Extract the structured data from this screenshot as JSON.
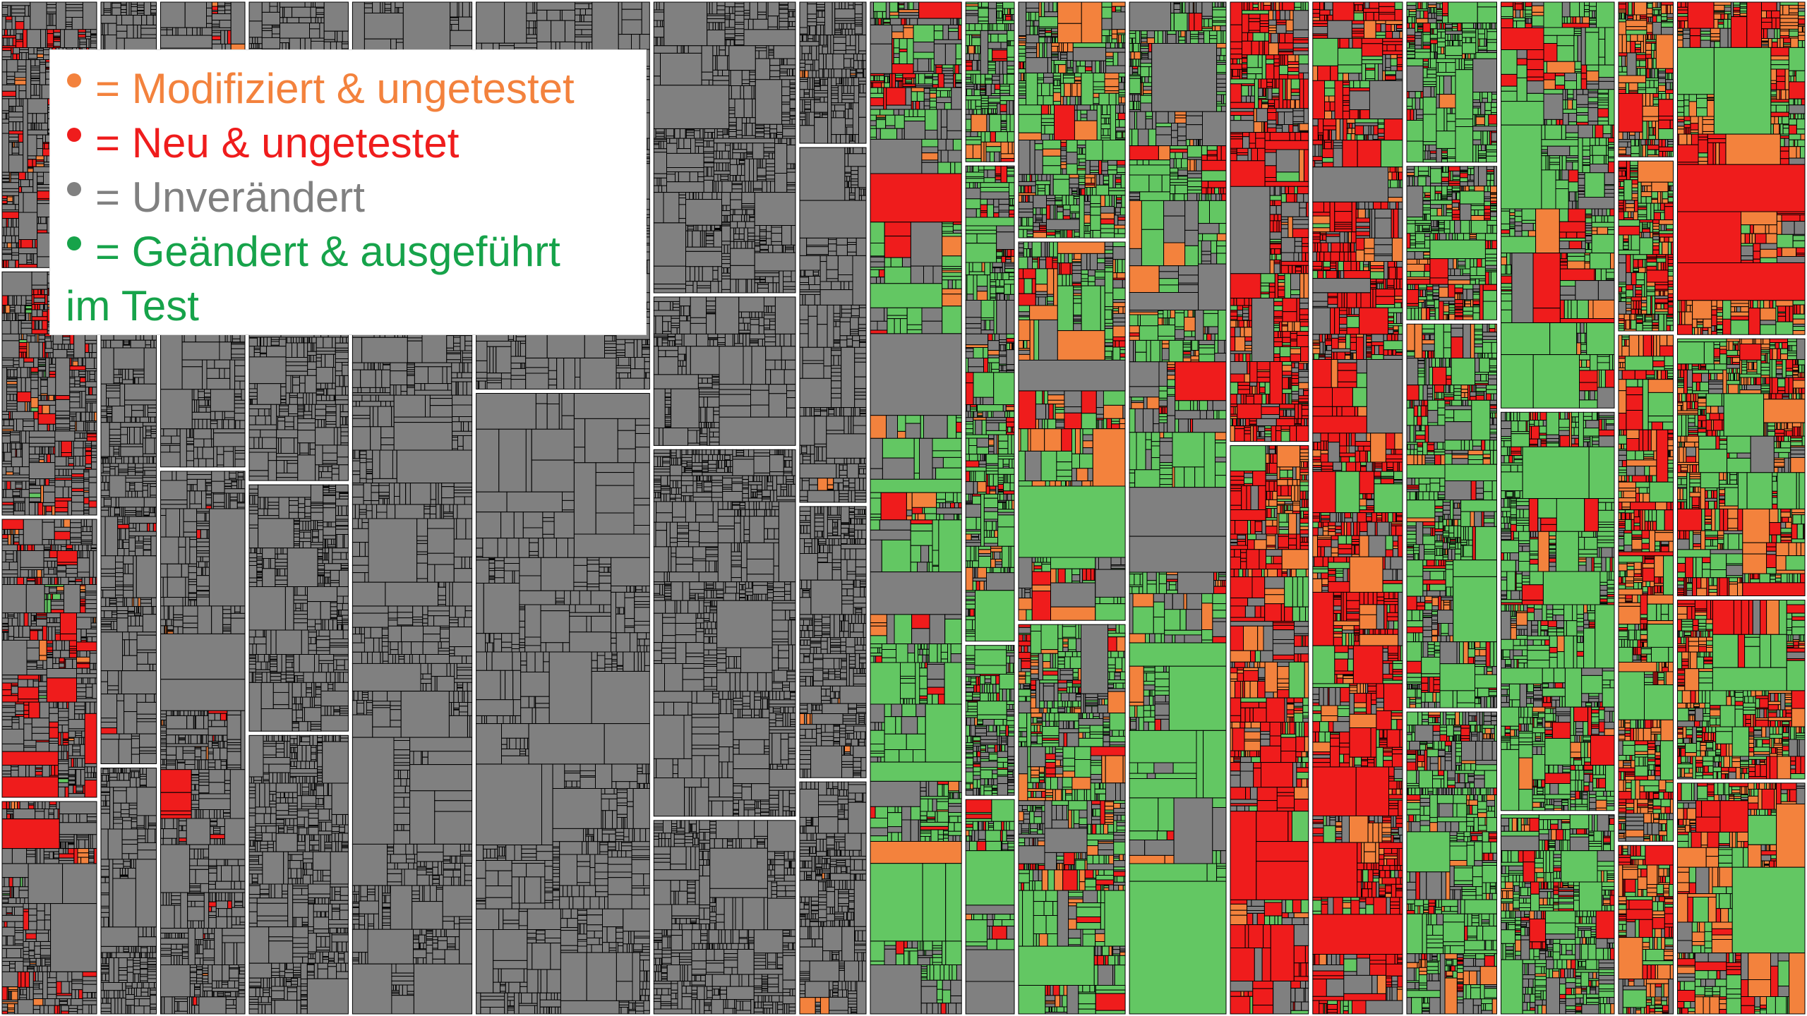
{
  "chart_data": {
    "type": "treemap",
    "title": "",
    "colors": {
      "modified_untested": "#f3823d",
      "new_untested": "#ef1c1c",
      "unchanged": "#808080",
      "changed_executed": "#63c763",
      "cell_border": "#000000",
      "group_border": "#ffffff",
      "legend_green_text": "#16a34a"
    },
    "legend": {
      "placement": "top-left",
      "entries": [
        {
          "key": "modified_untested",
          "symbol": "•",
          "label": "= Modifiziert & ungetestet",
          "color": "#f3823d"
        },
        {
          "key": "new_untested",
          "symbol": "•",
          "label": "= Neu & ungetestet",
          "color": "#ef1c1c"
        },
        {
          "key": "unchanged",
          "symbol": "•",
          "label": "= Unverändert",
          "color": "#808080"
        },
        {
          "key": "changed_executed",
          "symbol": "•",
          "label": "= Geändert & ausgeführt",
          "color": "#16a34a"
        }
      ],
      "continuation": {
        "label": "im Test",
        "color": "#16a34a"
      }
    },
    "groups": [
      {
        "id": "g1",
        "status_mix": {
          "unchanged": 0.8,
          "new_untested": 0.15,
          "modified_untested": 0.04,
          "changed_executed": 0.01
        }
      },
      {
        "id": "g2",
        "status_mix": {
          "unchanged": 0.97,
          "new_untested": 0.02,
          "modified_untested": 0.01,
          "changed_executed": 0.0
        }
      },
      {
        "id": "g3",
        "status_mix": {
          "unchanged": 1.0,
          "new_untested": 0.0,
          "modified_untested": 0.0,
          "changed_executed": 0.0
        }
      },
      {
        "id": "g4",
        "status_mix": {
          "unchanged": 0.99,
          "new_untested": 0.0,
          "modified_untested": 0.01,
          "changed_executed": 0.0
        }
      },
      {
        "id": "g5",
        "status_mix": {
          "changed_executed": 0.55,
          "unchanged": 0.3,
          "new_untested": 0.09,
          "modified_untested": 0.06
        }
      },
      {
        "id": "g6",
        "status_mix": {
          "changed_executed": 0.5,
          "unchanged": 0.3,
          "modified_untested": 0.12,
          "new_untested": 0.08
        }
      },
      {
        "id": "g7",
        "status_mix": {
          "new_untested": 0.55,
          "unchanged": 0.2,
          "changed_executed": 0.15,
          "modified_untested": 0.1
        }
      },
      {
        "id": "g8",
        "status_mix": {
          "changed_executed": 0.55,
          "unchanged": 0.25,
          "new_untested": 0.12,
          "modified_untested": 0.08
        }
      },
      {
        "id": "g9",
        "status_mix": {
          "changed_executed": 0.35,
          "modified_untested": 0.3,
          "new_untested": 0.25,
          "unchanged": 0.1
        }
      }
    ]
  }
}
